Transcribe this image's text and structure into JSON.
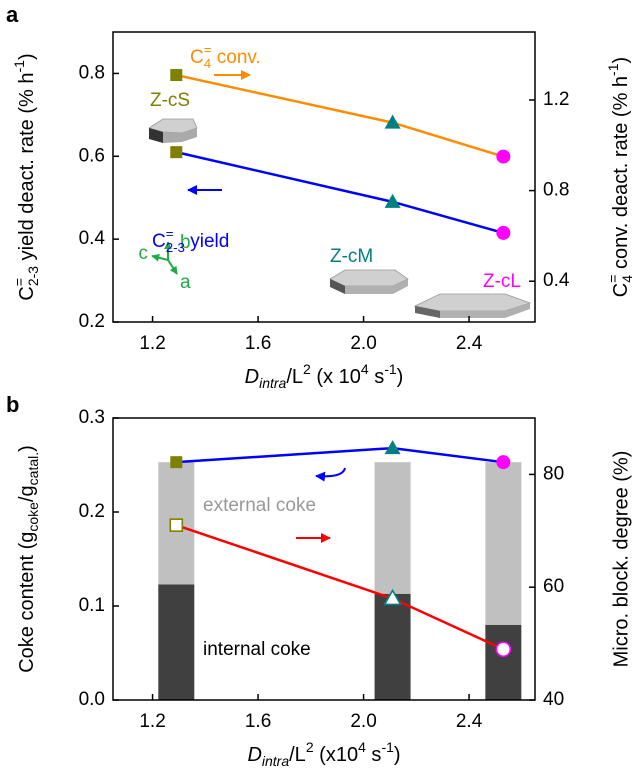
{
  "chart_data": [
    {
      "type": "line",
      "panel_label": "a",
      "x": [
        1.29,
        2.11,
        2.53
      ],
      "xlabel": [
        "D",
        {
          "sub": "intra"
        },
        "/L",
        {
          "sup": "2"
        },
        " (x 10",
        {
          "sup": "4"
        },
        " s",
        {
          "sup": "-1"
        },
        ")"
      ],
      "ylabel": [
        "C",
        {
          "sub": "2-3"
        },
        {
          "sup": "="
        },
        " yield deact. rate (% h",
        {
          "sup": "-1"
        },
        ")"
      ],
      "y2label": [
        "C",
        {
          "sub": "4"
        },
        {
          "sup": "="
        },
        " conv. deact. rate (% h",
        {
          "sup": "-1"
        },
        ")"
      ],
      "xlim": [
        1.05,
        2.65
      ],
      "xticks": [
        1.2,
        1.6,
        {
          "value": 2,
          "label": "2.0"
        },
        2.4
      ],
      "ylim": [
        0.2,
        0.9
      ],
      "yticks": [
        0.2,
        0.4,
        0.6,
        0.8
      ],
      "y2lim": [
        0.22,
        1.5
      ],
      "y2ticks": [
        0.4,
        0.8,
        1.2
      ],
      "markers": [
        "square",
        "triangle",
        "circle"
      ],
      "marker_colors": [
        "#808000",
        "#008080",
        "#ff00ff"
      ],
      "series": [
        {
          "color": "#ff8c00",
          "axis": "y2",
          "values": [
            1.31,
            1.1,
            0.95
          ]
        },
        {
          "color": "#0000ff",
          "values": [
            0.61,
            0.49,
            0.415
          ]
        }
      ],
      "annotations": [
        [
          "C",
          {
            "sub": "4"
          },
          {
            "sup": "="
          },
          " conv."
        ],
        [
          "C",
          {
            "sub": "2-3"
          },
          {
            "sup": "="
          },
          " yield"
        ],
        "Z-cS",
        "Z-cM",
        "Z-cL"
      ],
      "crystal_axes": [
        "b",
        "c",
        "a"
      ]
    },
    {
      "type": "bar-line",
      "panel_label": "b",
      "x": [
        1.29,
        2.11,
        2.53
      ],
      "xlabel": [
        "D",
        {
          "sub": "intra"
        },
        "/L",
        {
          "sup": "2"
        },
        " (x10",
        {
          "sup": "4"
        },
        " s",
        {
          "sup": "-1"
        },
        ")"
      ],
      "ylabel": [
        "Coke content (g",
        {
          "sub": "coke"
        },
        "/g",
        {
          "sub": "catal."
        },
        ")"
      ],
      "y2label": "Micro. block. degree (%)",
      "xlim": [
        1.05,
        2.65
      ],
      "xticks": [
        1.2,
        1.6,
        {
          "value": 2,
          "label": "2.0"
        },
        2.4
      ],
      "ylim": [
        0,
        0.3
      ],
      "yticks": [
        {
          "value": 0,
          "label": "0.0"
        },
        0.1,
        0.2,
        0.3
      ],
      "y2lim": [
        40,
        90
      ],
      "y2ticks": [
        40,
        60,
        80
      ],
      "markers": [
        "square",
        "triangle",
        "circle"
      ],
      "marker_colors": [
        "#808000",
        "#008080",
        "#ff00ff"
      ],
      "bars": [
        {
          "name": "internal coke",
          "color": "#404040",
          "values": [
            0.123,
            0.113,
            0.08
          ]
        },
        {
          "name": "external coke",
          "color": "#c0c0c0",
          "values": [
            0.13,
            0.14,
            0.173
          ]
        }
      ],
      "series": [
        {
          "color": "#0000ff",
          "values": [
            0.253,
            0.268,
            0.253
          ]
        },
        {
          "color": "#ff0000",
          "axis": "y2",
          "hollow": true,
          "values": [
            71,
            58,
            49
          ]
        }
      ]
    }
  ]
}
